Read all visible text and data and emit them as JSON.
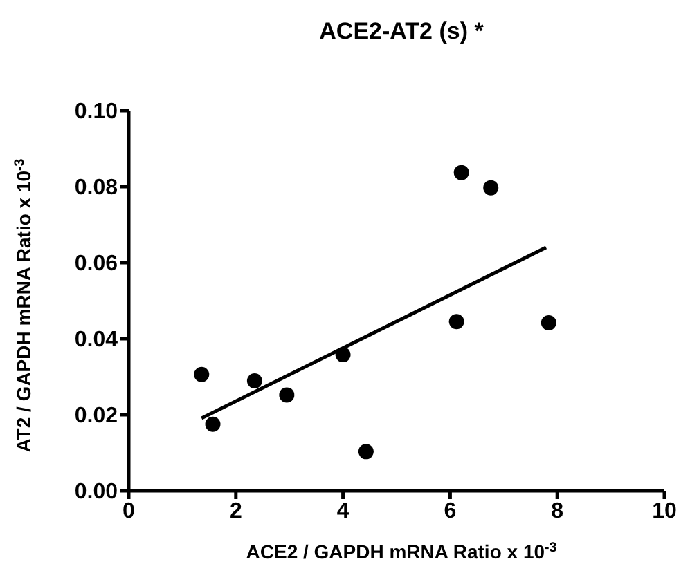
{
  "chart_data": {
    "type": "scatter",
    "title": "ACE2-AT2 (s)  *",
    "xlabel": "ACE2 / GAPDH mRNA Ratio x 10$^{-3}$",
    "ylabel": "AT2 / GAPDH mRNA Ratio x 10$^{-3}$",
    "xlim": [
      0,
      10
    ],
    "xticks": [
      0,
      2,
      4,
      6,
      8,
      10
    ],
    "ylim": [
      0,
      0.1
    ],
    "yticks": [
      {
        "value": 0,
        "label": "0.00"
      },
      {
        "value": 0.02,
        "label": "0.02"
      },
      {
        "value": 0.04,
        "label": "0.04"
      },
      {
        "value": 0.06,
        "label": "0.06"
      },
      {
        "value": 0.08,
        "label": "0.08"
      },
      {
        "value": 0.1,
        "label": "0.10"
      }
    ],
    "grid": false,
    "legend": false,
    "series": [
      {
        "marker": "circle",
        "color": "#000000",
        "x": [
          1.36,
          1.57,
          2.35,
          2.95,
          4.0,
          4.43,
          6.12,
          6.21,
          6.76,
          7.84
        ],
        "values": [
          0.0306,
          0.0175,
          0.0289,
          0.0252,
          0.0358,
          0.0103,
          0.0445,
          0.0837,
          0.0797,
          0.0442
        ]
      },
      {
        "type": "line",
        "color": "#000000",
        "x": [
          1.36,
          7.79
        ],
        "values": [
          0.0191,
          0.064
        ]
      }
    ]
  }
}
